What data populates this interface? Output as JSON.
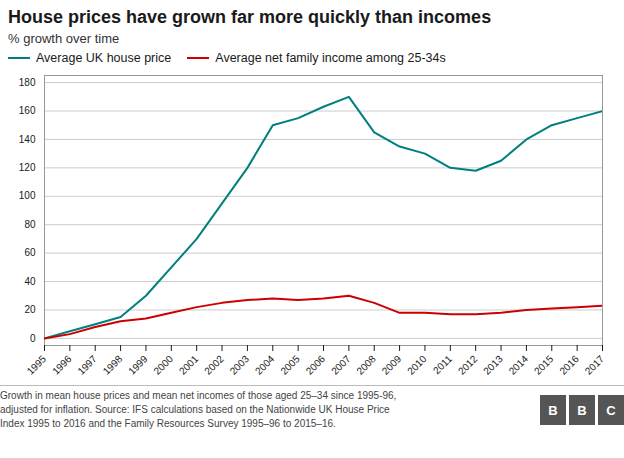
{
  "chart_data": {
    "type": "line",
    "title": "House prices have grown far more quickly than incomes",
    "subtitle": "% growth over time",
    "x": [
      1995,
      1996,
      1997,
      1998,
      1999,
      2000,
      2001,
      2002,
      2003,
      2004,
      2005,
      2006,
      2007,
      2008,
      2009,
      2010,
      2011,
      2012,
      2013,
      2014,
      2015,
      2016,
      2017
    ],
    "series": [
      {
        "name": "Average UK house price",
        "color": "#007f7f",
        "values": [
          0,
          5,
          10,
          15,
          30,
          50,
          70,
          95,
          120,
          150,
          155,
          163,
          170,
          145,
          135,
          130,
          120,
          118,
          125,
          140,
          150,
          155,
          160
        ]
      },
      {
        "name": "Average net family income among 25-34s",
        "color": "#cc0000",
        "values": [
          0,
          3,
          8,
          12,
          14,
          18,
          22,
          25,
          27,
          28,
          27,
          28,
          30,
          25,
          18,
          18,
          17,
          17,
          18,
          20,
          21,
          22,
          23
        ]
      }
    ],
    "xlim": [
      1995,
      2017
    ],
    "xticks": [
      1995,
      1996,
      1997,
      1998,
      1999,
      2000,
      2001,
      2002,
      2003,
      2004,
      2005,
      2006,
      2007,
      2008,
      2009,
      2010,
      2011,
      2012,
      2013,
      2014,
      2015,
      2016,
      2017
    ],
    "ylim": [
      -5,
      185
    ],
    "yticks": [
      0,
      20,
      40,
      60,
      80,
      100,
      120,
      140,
      160,
      180
    ],
    "grid": true,
    "legend": "top",
    "footnote": "Growth in mean house prices and mean net incomes of those aged 25–34 since 1995-96,\nadjusted for inflation. Source: IFS calculations based on the Nationwide UK House Price\nIndex 1995 to 2016 and the Family Resources Survey 1995–96 to 2015–16.",
    "logo": "BBC"
  }
}
